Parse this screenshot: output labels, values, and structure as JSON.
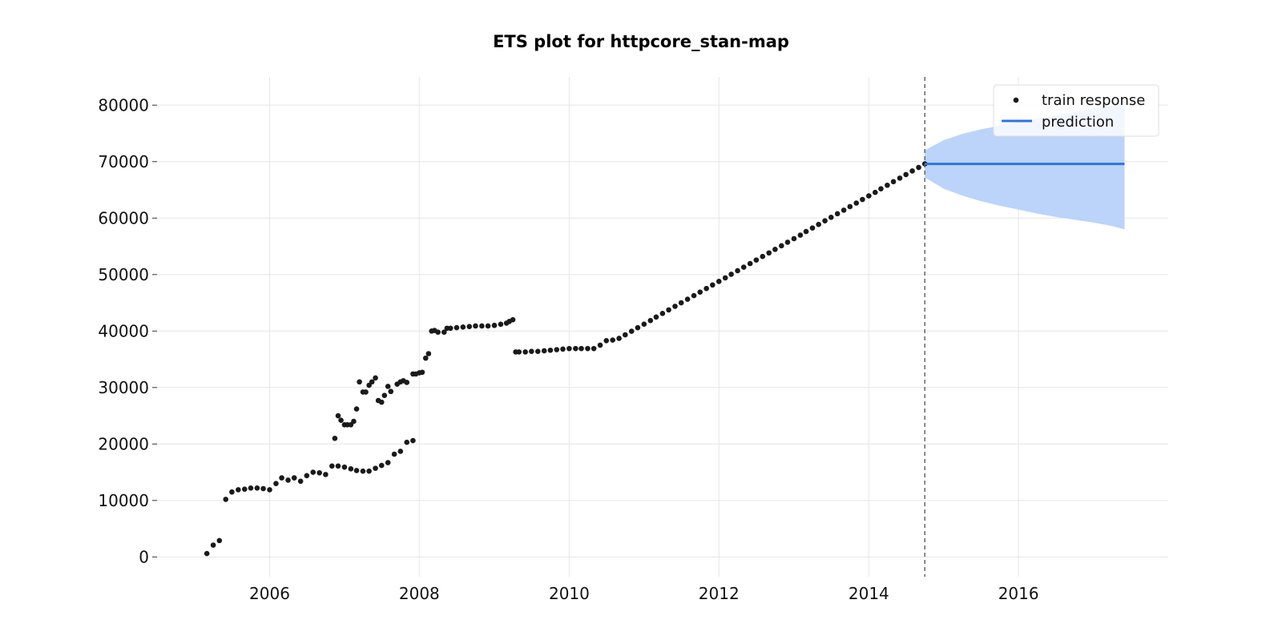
{
  "chart_data": {
    "type": "scatter",
    "title": "ETS plot for httpcore_stan-map",
    "xlabel": "",
    "ylabel": "",
    "xlim": [
      "2004-07-01",
      "2017-12-31"
    ],
    "ylim": [
      -3500,
      85000
    ],
    "x_ticks": [
      "2006-01-01",
      "2008-01-01",
      "2010-01-01",
      "2012-01-01",
      "2014-01-01",
      "2016-01-01"
    ],
    "x_tick_labels": [
      "2006",
      "2008",
      "2010",
      "2012",
      "2014",
      "2016"
    ],
    "y_ticks": [
      0,
      10000,
      20000,
      30000,
      40000,
      50000,
      60000,
      70000,
      80000
    ],
    "y_tick_labels": [
      "0",
      "10000",
      "20000",
      "30000",
      "40000",
      "50000",
      "60000",
      "70000",
      "80000"
    ],
    "grid": true,
    "legend_position": "top-right",
    "split_date": "2014-10-01",
    "colors": {
      "train": "#1a1a1a",
      "prediction": "#2f73e0",
      "interval": "#bcd3fa",
      "split_line": "#666666",
      "grid": "#e6e6e6"
    },
    "series": [
      {
        "name": "train response",
        "kind": "scatter",
        "points": [
          [
            "2005-03-01",
            600
          ],
          [
            "2005-04-01",
            2100
          ],
          [
            "2005-05-01",
            2900
          ],
          [
            "2005-06-01",
            10200
          ],
          [
            "2005-07-01",
            11500
          ],
          [
            "2005-08-01",
            11900
          ],
          [
            "2005-09-01",
            12000
          ],
          [
            "2005-10-01",
            12200
          ],
          [
            "2005-11-01",
            12200
          ],
          [
            "2005-12-01",
            12100
          ],
          [
            "2006-01-01",
            11900
          ],
          [
            "2006-02-01",
            13000
          ],
          [
            "2006-03-01",
            14000
          ],
          [
            "2006-04-01",
            13600
          ],
          [
            "2006-05-01",
            14000
          ],
          [
            "2006-06-01",
            13400
          ],
          [
            "2006-07-01",
            14400
          ],
          [
            "2006-08-01",
            15000
          ],
          [
            "2006-09-01",
            14900
          ],
          [
            "2006-10-01",
            14600
          ],
          [
            "2006-11-01",
            16100
          ],
          [
            "2006-12-01",
            16100
          ],
          [
            "2007-01-01",
            15900
          ],
          [
            "2007-02-01",
            15600
          ],
          [
            "2007-03-01",
            15300
          ],
          [
            "2007-04-01",
            15200
          ],
          [
            "2007-05-01",
            15200
          ],
          [
            "2007-06-01",
            15700
          ],
          [
            "2007-07-01",
            16200
          ],
          [
            "2007-08-01",
            16700
          ],
          [
            "2007-09-01",
            18200
          ],
          [
            "2007-10-01",
            18700
          ],
          [
            "2007-11-01",
            20300
          ],
          [
            "2007-12-01",
            20600
          ],
          [
            "2006-11-15",
            21000
          ],
          [
            "2006-12-01",
            25000
          ],
          [
            "2006-12-15",
            24200
          ],
          [
            "2007-01-01",
            23400
          ],
          [
            "2007-01-15",
            23400
          ],
          [
            "2007-02-01",
            23400
          ],
          [
            "2007-02-15",
            24000
          ],
          [
            "2007-03-01",
            26200
          ],
          [
            "2007-03-15",
            31000
          ],
          [
            "2007-04-01",
            29200
          ],
          [
            "2007-04-15",
            29200
          ],
          [
            "2007-05-01",
            30400
          ],
          [
            "2007-05-15",
            31000
          ],
          [
            "2007-06-01",
            31700
          ],
          [
            "2007-06-15",
            27700
          ],
          [
            "2007-07-01",
            27400
          ],
          [
            "2007-07-15",
            28600
          ],
          [
            "2007-08-01",
            30200
          ],
          [
            "2007-08-15",
            29300
          ],
          [
            "2007-09-15",
            30600
          ],
          [
            "2007-10-01",
            31000
          ],
          [
            "2007-10-15",
            31200
          ],
          [
            "2007-11-01",
            30900
          ],
          [
            "2007-12-01",
            32400
          ],
          [
            "2007-12-15",
            32400
          ],
          [
            "2008-01-01",
            32600
          ],
          [
            "2008-01-15",
            32700
          ],
          [
            "2008-02-01",
            35200
          ],
          [
            "2008-02-15",
            36000
          ],
          [
            "2008-03-01",
            40000
          ],
          [
            "2008-03-15",
            40100
          ],
          [
            "2008-04-01",
            39800
          ],
          [
            "2008-05-01",
            39800
          ],
          [
            "2008-05-15",
            40500
          ],
          [
            "2008-06-01",
            40500
          ],
          [
            "2008-07-01",
            40600
          ],
          [
            "2008-08-01",
            40700
          ],
          [
            "2008-09-01",
            40800
          ],
          [
            "2008-10-01",
            40900
          ],
          [
            "2008-11-01",
            40900
          ],
          [
            "2008-12-01",
            40900
          ],
          [
            "2009-01-01",
            41000
          ],
          [
            "2009-02-01",
            41200
          ],
          [
            "2009-03-01",
            41400
          ],
          [
            "2009-03-15",
            41700
          ],
          [
            "2009-04-01",
            42000
          ],
          [
            "2009-04-15",
            36300
          ],
          [
            "2009-05-01",
            36300
          ],
          [
            "2009-06-01",
            36300
          ],
          [
            "2009-07-01",
            36400
          ],
          [
            "2009-08-01",
            36400
          ],
          [
            "2009-09-01",
            36500
          ],
          [
            "2009-10-01",
            36600
          ],
          [
            "2009-11-01",
            36700
          ],
          [
            "2009-12-01",
            36800
          ],
          [
            "2010-01-01",
            36900
          ],
          [
            "2010-02-01",
            36900
          ],
          [
            "2010-03-01",
            36900
          ],
          [
            "2010-04-01",
            36900
          ],
          [
            "2010-05-01",
            36900
          ],
          [
            "2010-06-01",
            37500
          ],
          [
            "2010-07-01",
            38300
          ],
          [
            "2010-08-01",
            38400
          ],
          [
            "2010-09-01",
            38700
          ]
        ],
        "line_segment": {
          "start": [
            "2010-09-01",
            38700
          ],
          "end": [
            "2014-10-01",
            69600
          ],
          "step": "monthly"
        }
      },
      {
        "name": "prediction",
        "kind": "line",
        "points": [
          [
            "2014-10-01",
            69600
          ],
          [
            "2017-06-01",
            69600
          ]
        ]
      }
    ],
    "interval": {
      "x": [
        "2014-10-01",
        "2015-01-01",
        "2015-04-01",
        "2015-07-01",
        "2015-10-01",
        "2016-01-01",
        "2016-04-01",
        "2016-07-01",
        "2016-10-01",
        "2017-01-01",
        "2017-04-01",
        "2017-06-01"
      ],
      "upper": [
        72000,
        73800,
        74900,
        75700,
        76400,
        77000,
        77600,
        78200,
        78800,
        79400,
        79900,
        80300
      ],
      "lower": [
        67200,
        65200,
        64000,
        63000,
        62200,
        61500,
        60800,
        60200,
        59700,
        59200,
        58600,
        58000
      ]
    }
  }
}
